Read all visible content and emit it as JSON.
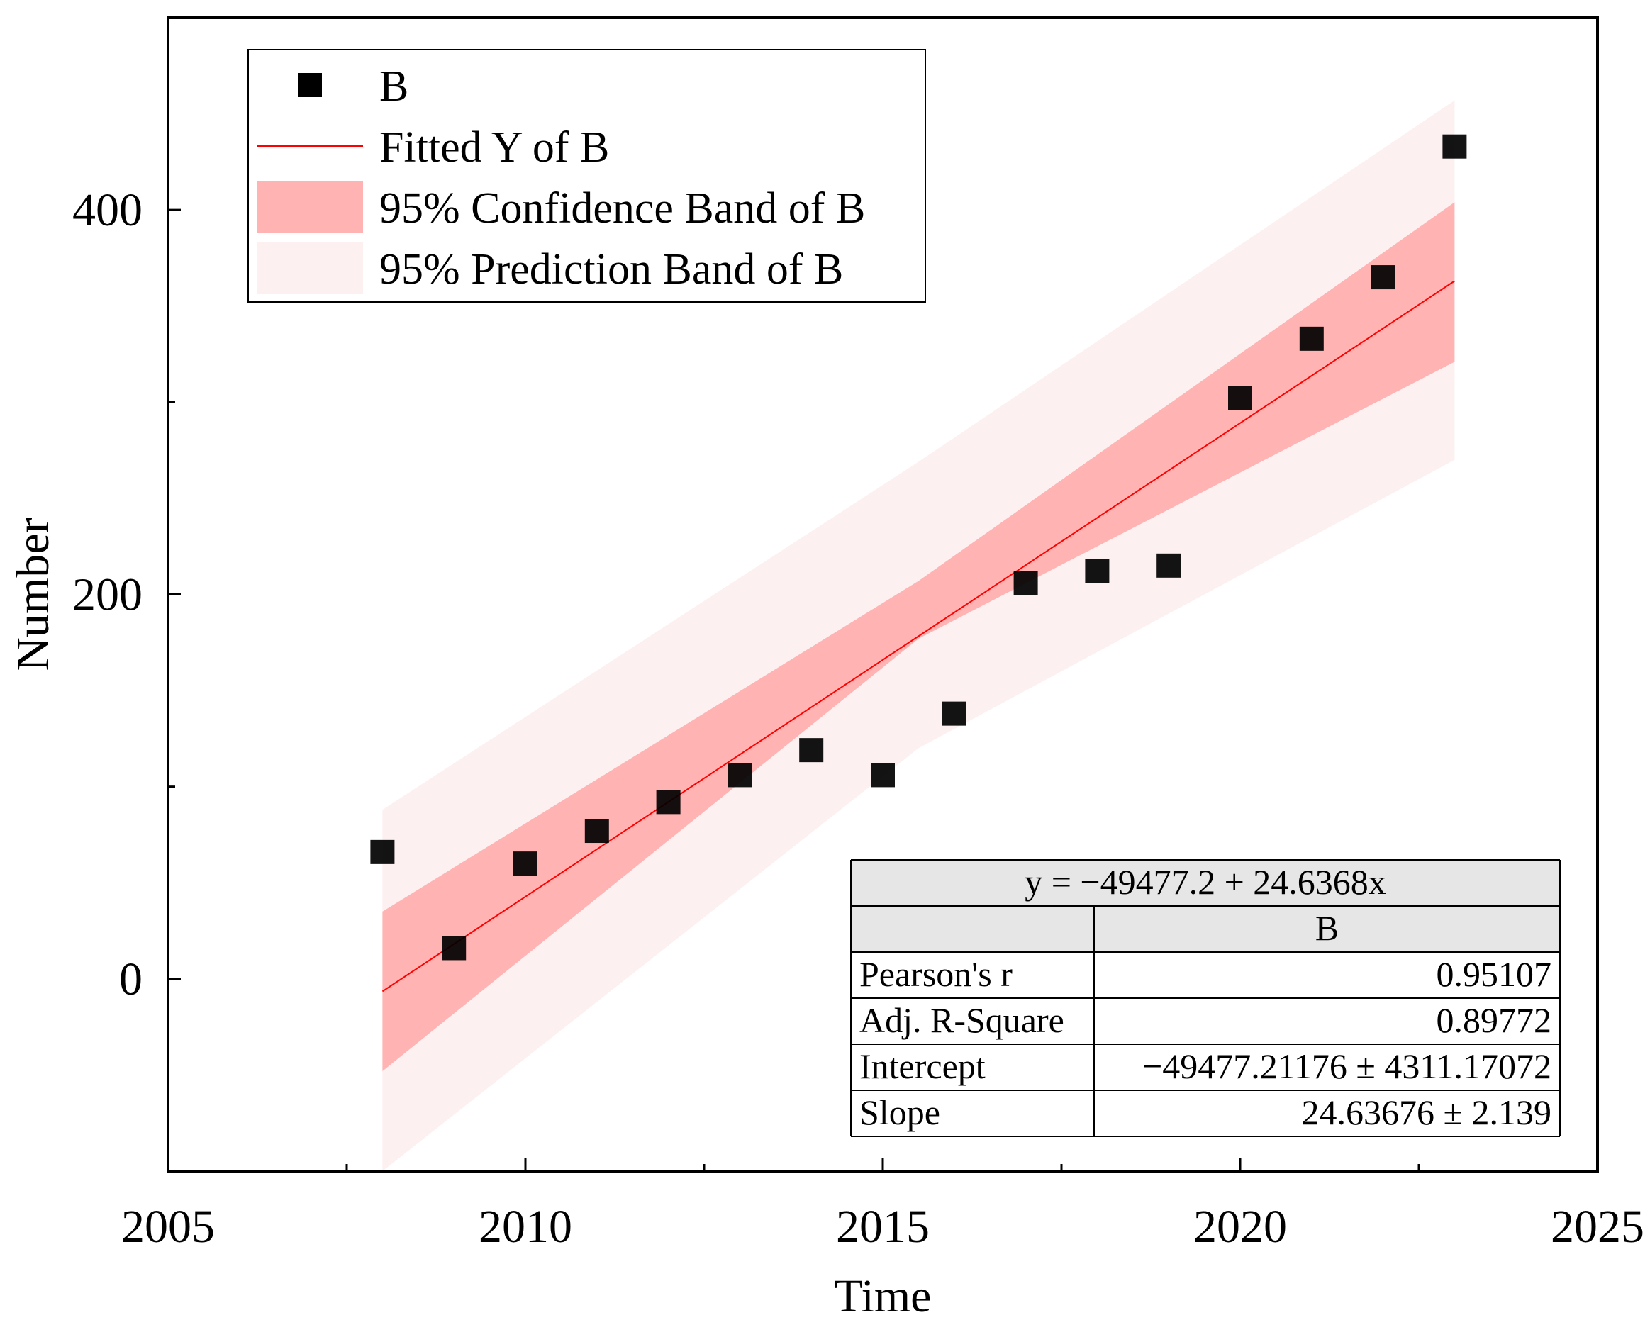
{
  "chart_data": {
    "type": "scatter",
    "title": "",
    "xlabel": "Time",
    "ylabel": "Number",
    "xlim": [
      2005,
      2025
    ],
    "ylim": [
      -100,
      500
    ],
    "x_ticks": [
      2005,
      2010,
      2015,
      2020,
      2025
    ],
    "x_minor_ticks": [
      2007.5,
      2012.5,
      2017.5,
      2022.5
    ],
    "y_ticks": [
      0,
      200,
      400
    ],
    "y_minor_ticks": [
      100,
      300
    ],
    "grid": false,
    "legend_position": "top-left",
    "series": [
      {
        "name": "B",
        "kind": "points",
        "marker": "square",
        "color": "#000000",
        "x": [
          2008,
          2009,
          2010,
          2011,
          2012,
          2013,
          2014,
          2015,
          2016,
          2017,
          2018,
          2019,
          2020,
          2021,
          2022,
          2023
        ],
        "y": [
          66,
          16,
          60,
          77,
          92,
          106,
          119,
          106,
          138,
          206,
          212,
          215,
          302,
          333,
          365,
          433
        ]
      },
      {
        "name": "Fitted Y of B",
        "kind": "line",
        "color": "#ff0000",
        "intercept": -49477.2,
        "slope": 24.6368,
        "x_range": [
          2008,
          2023
        ]
      },
      {
        "name": "95% Confidence Band of B",
        "kind": "band",
        "color": "#ffb3b3",
        "x": [
          2008,
          2015.5,
          2023
        ],
        "lower": [
          -48,
          177,
          321
        ],
        "upper": [
          35,
          207,
          404
        ]
      },
      {
        "name": "95% Prediction Band of B",
        "kind": "band",
        "color": "#fdf0f0",
        "x": [
          2008,
          2015.5,
          2023
        ],
        "lower": [
          -100,
          120,
          270
        ],
        "upper": [
          88,
          269,
          457
        ]
      }
    ],
    "legend": [
      "B",
      "Fitted Y of B",
      "95% Confidence Band of B",
      "95% Prediction Band of B"
    ],
    "stats_table": {
      "equation": "y = −49477.2 + 24.6368x",
      "column_header": "B",
      "rows": [
        {
          "label": "Pearson's r",
          "value": "0.95107"
        },
        {
          "label": "Adj. R-Square",
          "value": "0.89772"
        },
        {
          "label": "Intercept",
          "value": "−49477.21176 ± 4311.17072"
        },
        {
          "label": "Slope",
          "value": "24.63676 ± 2.139"
        }
      ]
    }
  }
}
